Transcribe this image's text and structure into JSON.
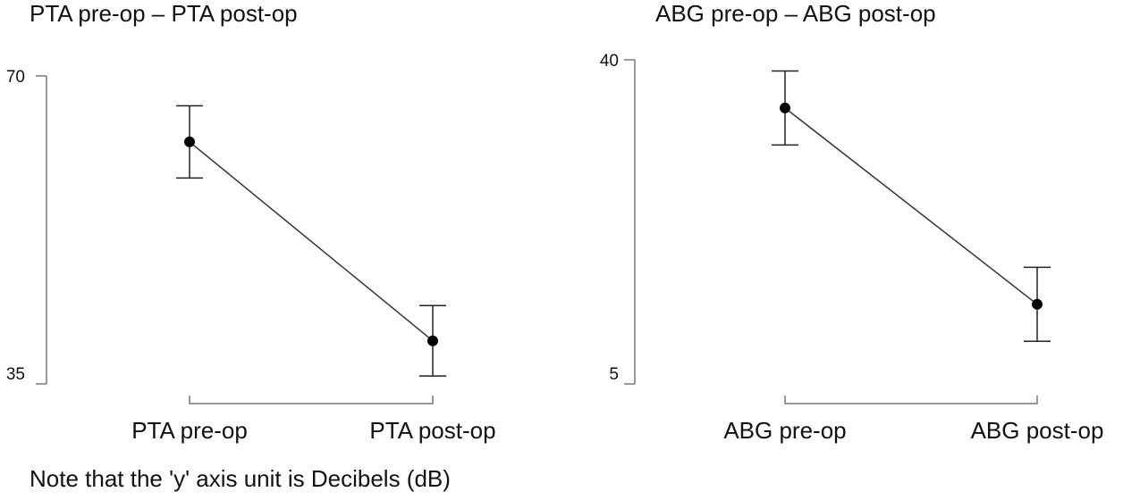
{
  "chart_data": [
    {
      "type": "errorbar",
      "title": "PTA pre-op – PTA post-op",
      "categories": [
        "PTA pre-op",
        "PTA post-op"
      ],
      "values": [
        62.5,
        39.9
      ],
      "errors": [
        4.1,
        4.0
      ],
      "color": "#000000",
      "ylim": [
        35,
        70
      ],
      "yticks": [
        35,
        70
      ]
    },
    {
      "type": "errorbar",
      "title": "ABG pre-op – ABG post-op",
      "categories": [
        "ABG pre-op",
        "ABG post-op"
      ],
      "values": [
        34.8,
        13.6
      ],
      "errors": [
        4.0,
        4.0
      ],
      "color": "#000000",
      "ylim": [
        5,
        40
      ],
      "yticks": [
        5,
        40
      ]
    }
  ],
  "note": "Note that the 'y' axis unit is Decibels (dB)"
}
